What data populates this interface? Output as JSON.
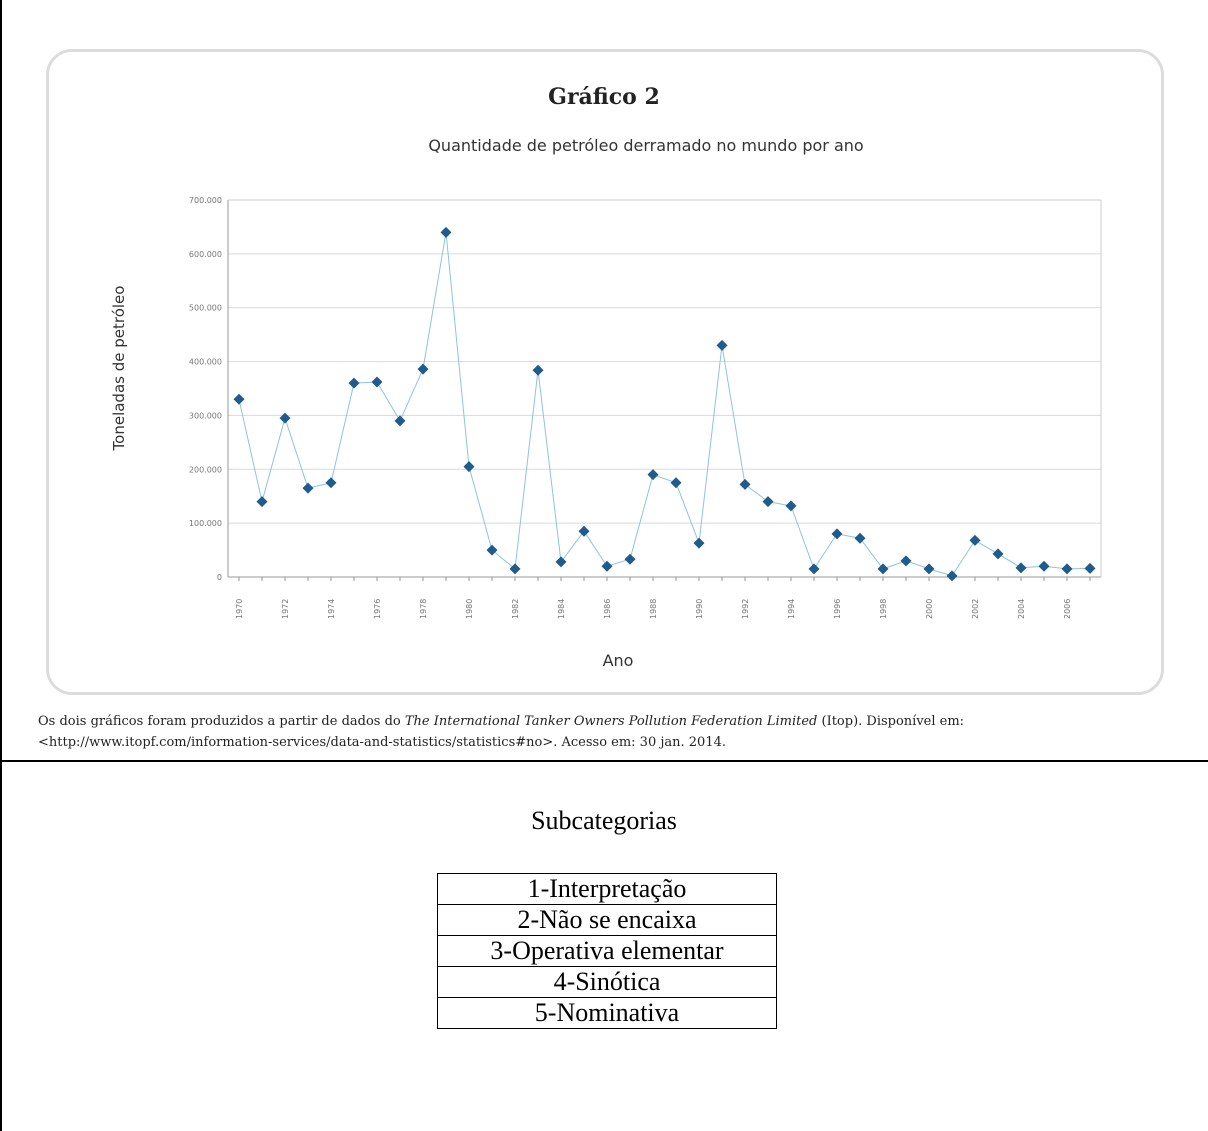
{
  "chart_data": {
    "type": "line",
    "title": "Gráfico 2",
    "subtitle": "Quantidade de petróleo derramado no mundo por ano",
    "xlabel": "Ano",
    "ylabel": "Toneladas de petróleo",
    "ylim": [
      0,
      700000
    ],
    "yticks": [
      "0",
      "100.000",
      "200.000",
      "300.000",
      "400.000",
      "500.000",
      "600.000",
      "700.000"
    ],
    "xticks": [
      "1970",
      "1972",
      "1974",
      "1976",
      "1978",
      "1980",
      "1982",
      "1984",
      "1986",
      "1988",
      "1990",
      "1992",
      "1994",
      "1996",
      "1998",
      "2000",
      "2002",
      "2004",
      "2006"
    ],
    "grid": true,
    "color": "#1f5b8c",
    "line_color": "#8ec4da",
    "x": [
      1970,
      1971,
      1972,
      1973,
      1974,
      1975,
      1976,
      1977,
      1978,
      1979,
      1980,
      1981,
      1982,
      1983,
      1984,
      1985,
      1986,
      1987,
      1988,
      1989,
      1990,
      1991,
      1992,
      1993,
      1994,
      1995,
      1996,
      1997,
      1998,
      1999,
      2000,
      2001,
      2002,
      2003,
      2004,
      2005,
      2006,
      2007
    ],
    "values": [
      330000,
      140000,
      295000,
      165000,
      175000,
      360000,
      362000,
      290000,
      386000,
      640000,
      205000,
      50000,
      15000,
      384000,
      28000,
      85000,
      20000,
      33000,
      190000,
      175000,
      63000,
      430000,
      172000,
      140000,
      132000,
      15000,
      80000,
      72000,
      15000,
      30000,
      15000,
      2000,
      68000,
      43000,
      17000,
      20000,
      15000,
      16000
    ]
  },
  "caption": {
    "text1": "Os dois gráficos foram produzidos a partir de dados do ",
    "source_italic": "The International Tanker Owners Pollution Federation Limited",
    "text2": " (Itop). Disponível em:",
    "line2": "<http://www.itopf.com/information-services/data-and-statistics/statistics#no>. Acesso em: 30 jan. 2014."
  },
  "subcategories": {
    "title": "Subcategorias",
    "items": [
      "1-Interpretação",
      "2-Não se encaixa",
      "3-Operativa elementar",
      "4-Sinótica",
      "5-Nominativa"
    ]
  }
}
